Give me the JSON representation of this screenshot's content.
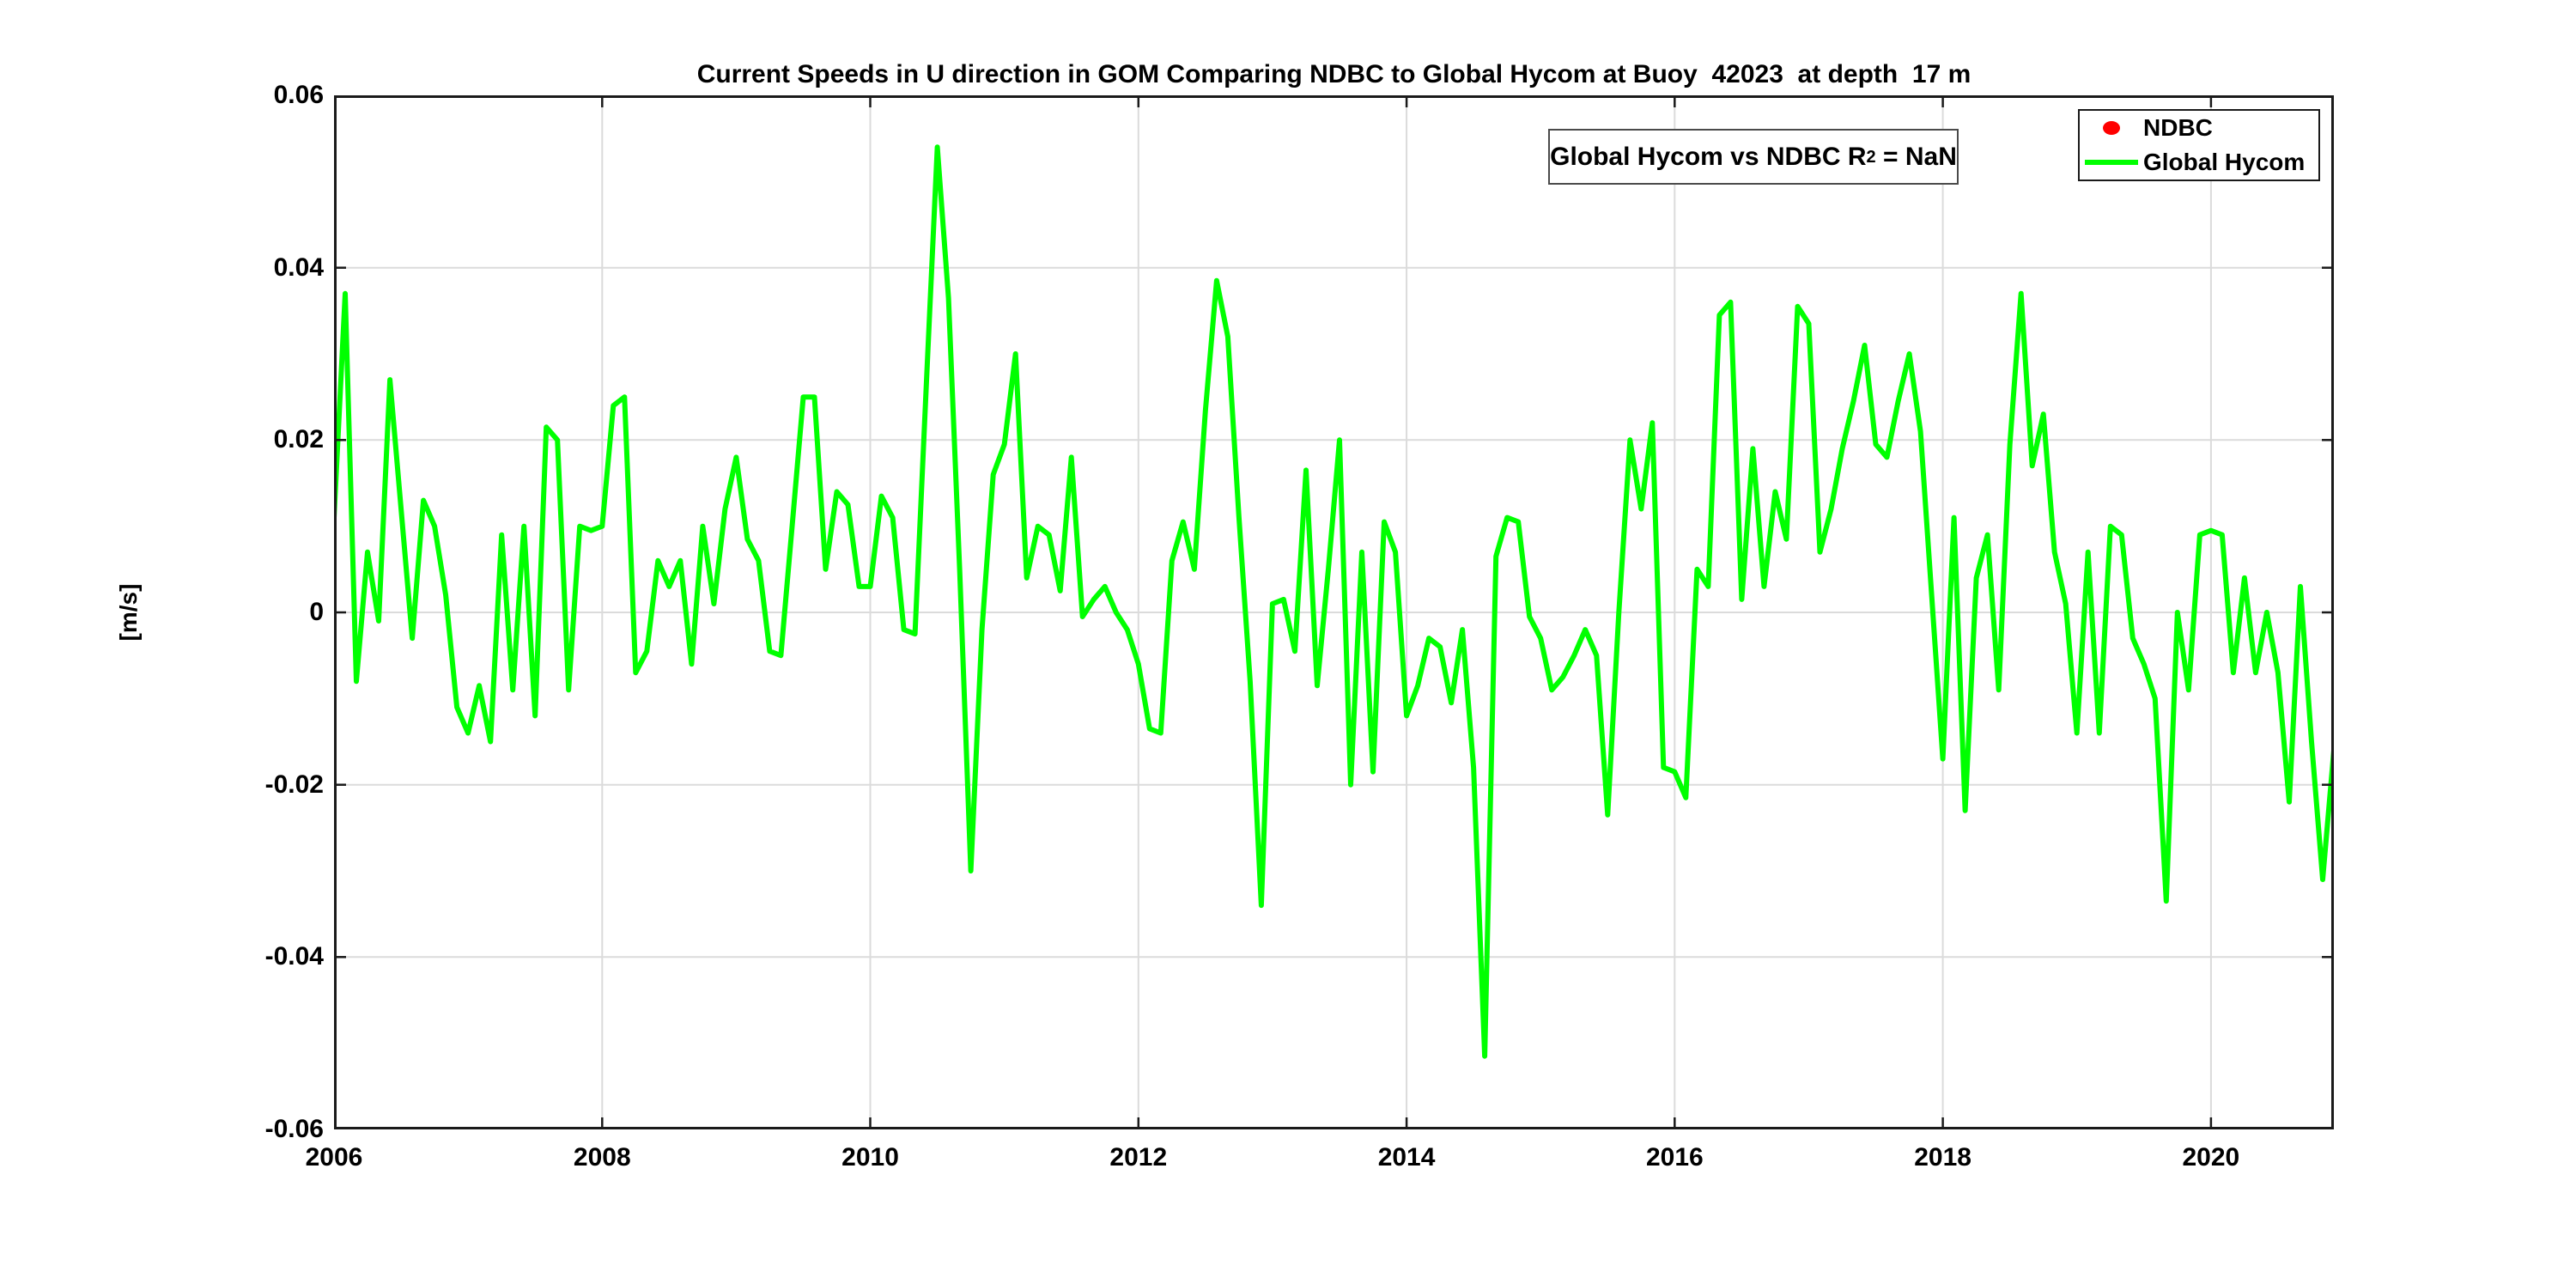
{
  "chart_data": {
    "type": "line",
    "title": "Current Speeds in U direction in GOM Comparing NDBC to Global Hycom at Buoy  42023  at depth  17 m",
    "ylabel": "[m/s]",
    "xlim": [
      2006,
      2020.9167
    ],
    "ylim": [
      -0.06,
      0.06
    ],
    "grid": true,
    "xticks": [
      2006,
      2008,
      2010,
      2012,
      2014,
      2016,
      2018,
      2020
    ],
    "xtick_labels": [
      "2006",
      "2008",
      "2010",
      "2012",
      "2014",
      "2016",
      "2018",
      "2020"
    ],
    "yticks": [
      0.06,
      0.04,
      0.02,
      0,
      -0.02,
      -0.04,
      -0.06
    ],
    "ytick_labels": [
      "0.06",
      "0.04",
      "0.02",
      "0",
      "-0.02",
      "-0.04",
      "-0.06"
    ],
    "grid_color": "#dbdbdb",
    "axis_color": "#1a1a1a",
    "legend_position": "top-right-inside",
    "annotation": {
      "prefix": "Global Hycom vs NDBC R",
      "sup": "2",
      "suffix": " = NaN"
    },
    "series": [
      {
        "name": "NDBC",
        "color": "#ff0000",
        "marker": "dot",
        "values": []
      },
      {
        "name": "Global Hycom",
        "color": "#00ff00",
        "line_width": 6,
        "x_start_year": 2006,
        "x_step": "1 month",
        "values": [
          0.011,
          0.037,
          -0.008,
          0.007,
          -0.001,
          0.027,
          0.012,
          -0.003,
          0.013,
          0.01,
          0.002,
          -0.011,
          -0.014,
          -0.0085,
          -0.015,
          0.009,
          -0.009,
          0.01,
          -0.012,
          0.0215,
          0.02,
          -0.009,
          0.01,
          0.0095,
          0.01,
          0.024,
          0.025,
          -0.007,
          -0.0045,
          0.006,
          0.003,
          0.006,
          -0.006,
          0.01,
          0.001,
          0.012,
          0.018,
          0.0085,
          0.006,
          -0.0045,
          -0.005,
          0.01,
          0.025,
          0.025,
          0.005,
          0.014,
          0.0125,
          0.003,
          0.003,
          0.0135,
          0.011,
          -0.002,
          -0.0025,
          0.026,
          0.054,
          0.0365,
          0.005,
          -0.03,
          -0.002,
          0.016,
          0.0195,
          0.03,
          0.004,
          0.01,
          0.009,
          0.0025,
          0.018,
          -0.0005,
          0.0015,
          0.003,
          0.0,
          -0.002,
          -0.006,
          -0.0135,
          -0.014,
          0.006,
          0.0105,
          0.005,
          0.0235,
          0.0385,
          0.032,
          0.011,
          -0.008,
          -0.034,
          0.001,
          0.0015,
          -0.0045,
          0.0165,
          -0.0085,
          0.005,
          0.02,
          -0.02,
          0.007,
          -0.0185,
          0.0105,
          0.007,
          -0.012,
          -0.0085,
          -0.003,
          -0.004,
          -0.0105,
          -0.002,
          -0.018,
          -0.0515,
          0.0065,
          0.011,
          0.0105,
          -0.0005,
          -0.003,
          -0.009,
          -0.0075,
          -0.005,
          -0.002,
          -0.005,
          -0.0235,
          0.0,
          0.02,
          0.012,
          0.022,
          -0.018,
          -0.0185,
          -0.0215,
          0.005,
          0.003,
          0.0345,
          0.036,
          0.0015,
          0.019,
          0.003,
          0.014,
          0.0085,
          0.0355,
          0.0335,
          0.007,
          0.012,
          0.019,
          0.0245,
          0.031,
          0.0195,
          0.018,
          0.0245,
          0.03,
          0.021,
          0.002,
          -0.017,
          0.011,
          -0.023,
          0.004,
          0.009,
          -0.009,
          0.0195,
          0.037,
          0.017,
          0.023,
          0.007,
          0.001,
          -0.014,
          0.007,
          -0.014,
          0.01,
          0.009,
          -0.003,
          -0.006,
          -0.01,
          -0.0335,
          0.0,
          -0.009,
          0.009,
          0.0095,
          0.009,
          -0.007,
          0.004,
          -0.007,
          0.0,
          -0.007,
          -0.022,
          0.003,
          -0.015,
          -0.031,
          -0.016
        ]
      }
    ]
  },
  "legend": {
    "entries": [
      {
        "label": "NDBC",
        "marker": "red-dot",
        "color": "#ff0000"
      },
      {
        "label": "Global Hycom",
        "marker": "green-line",
        "color": "#00ff00"
      }
    ]
  }
}
